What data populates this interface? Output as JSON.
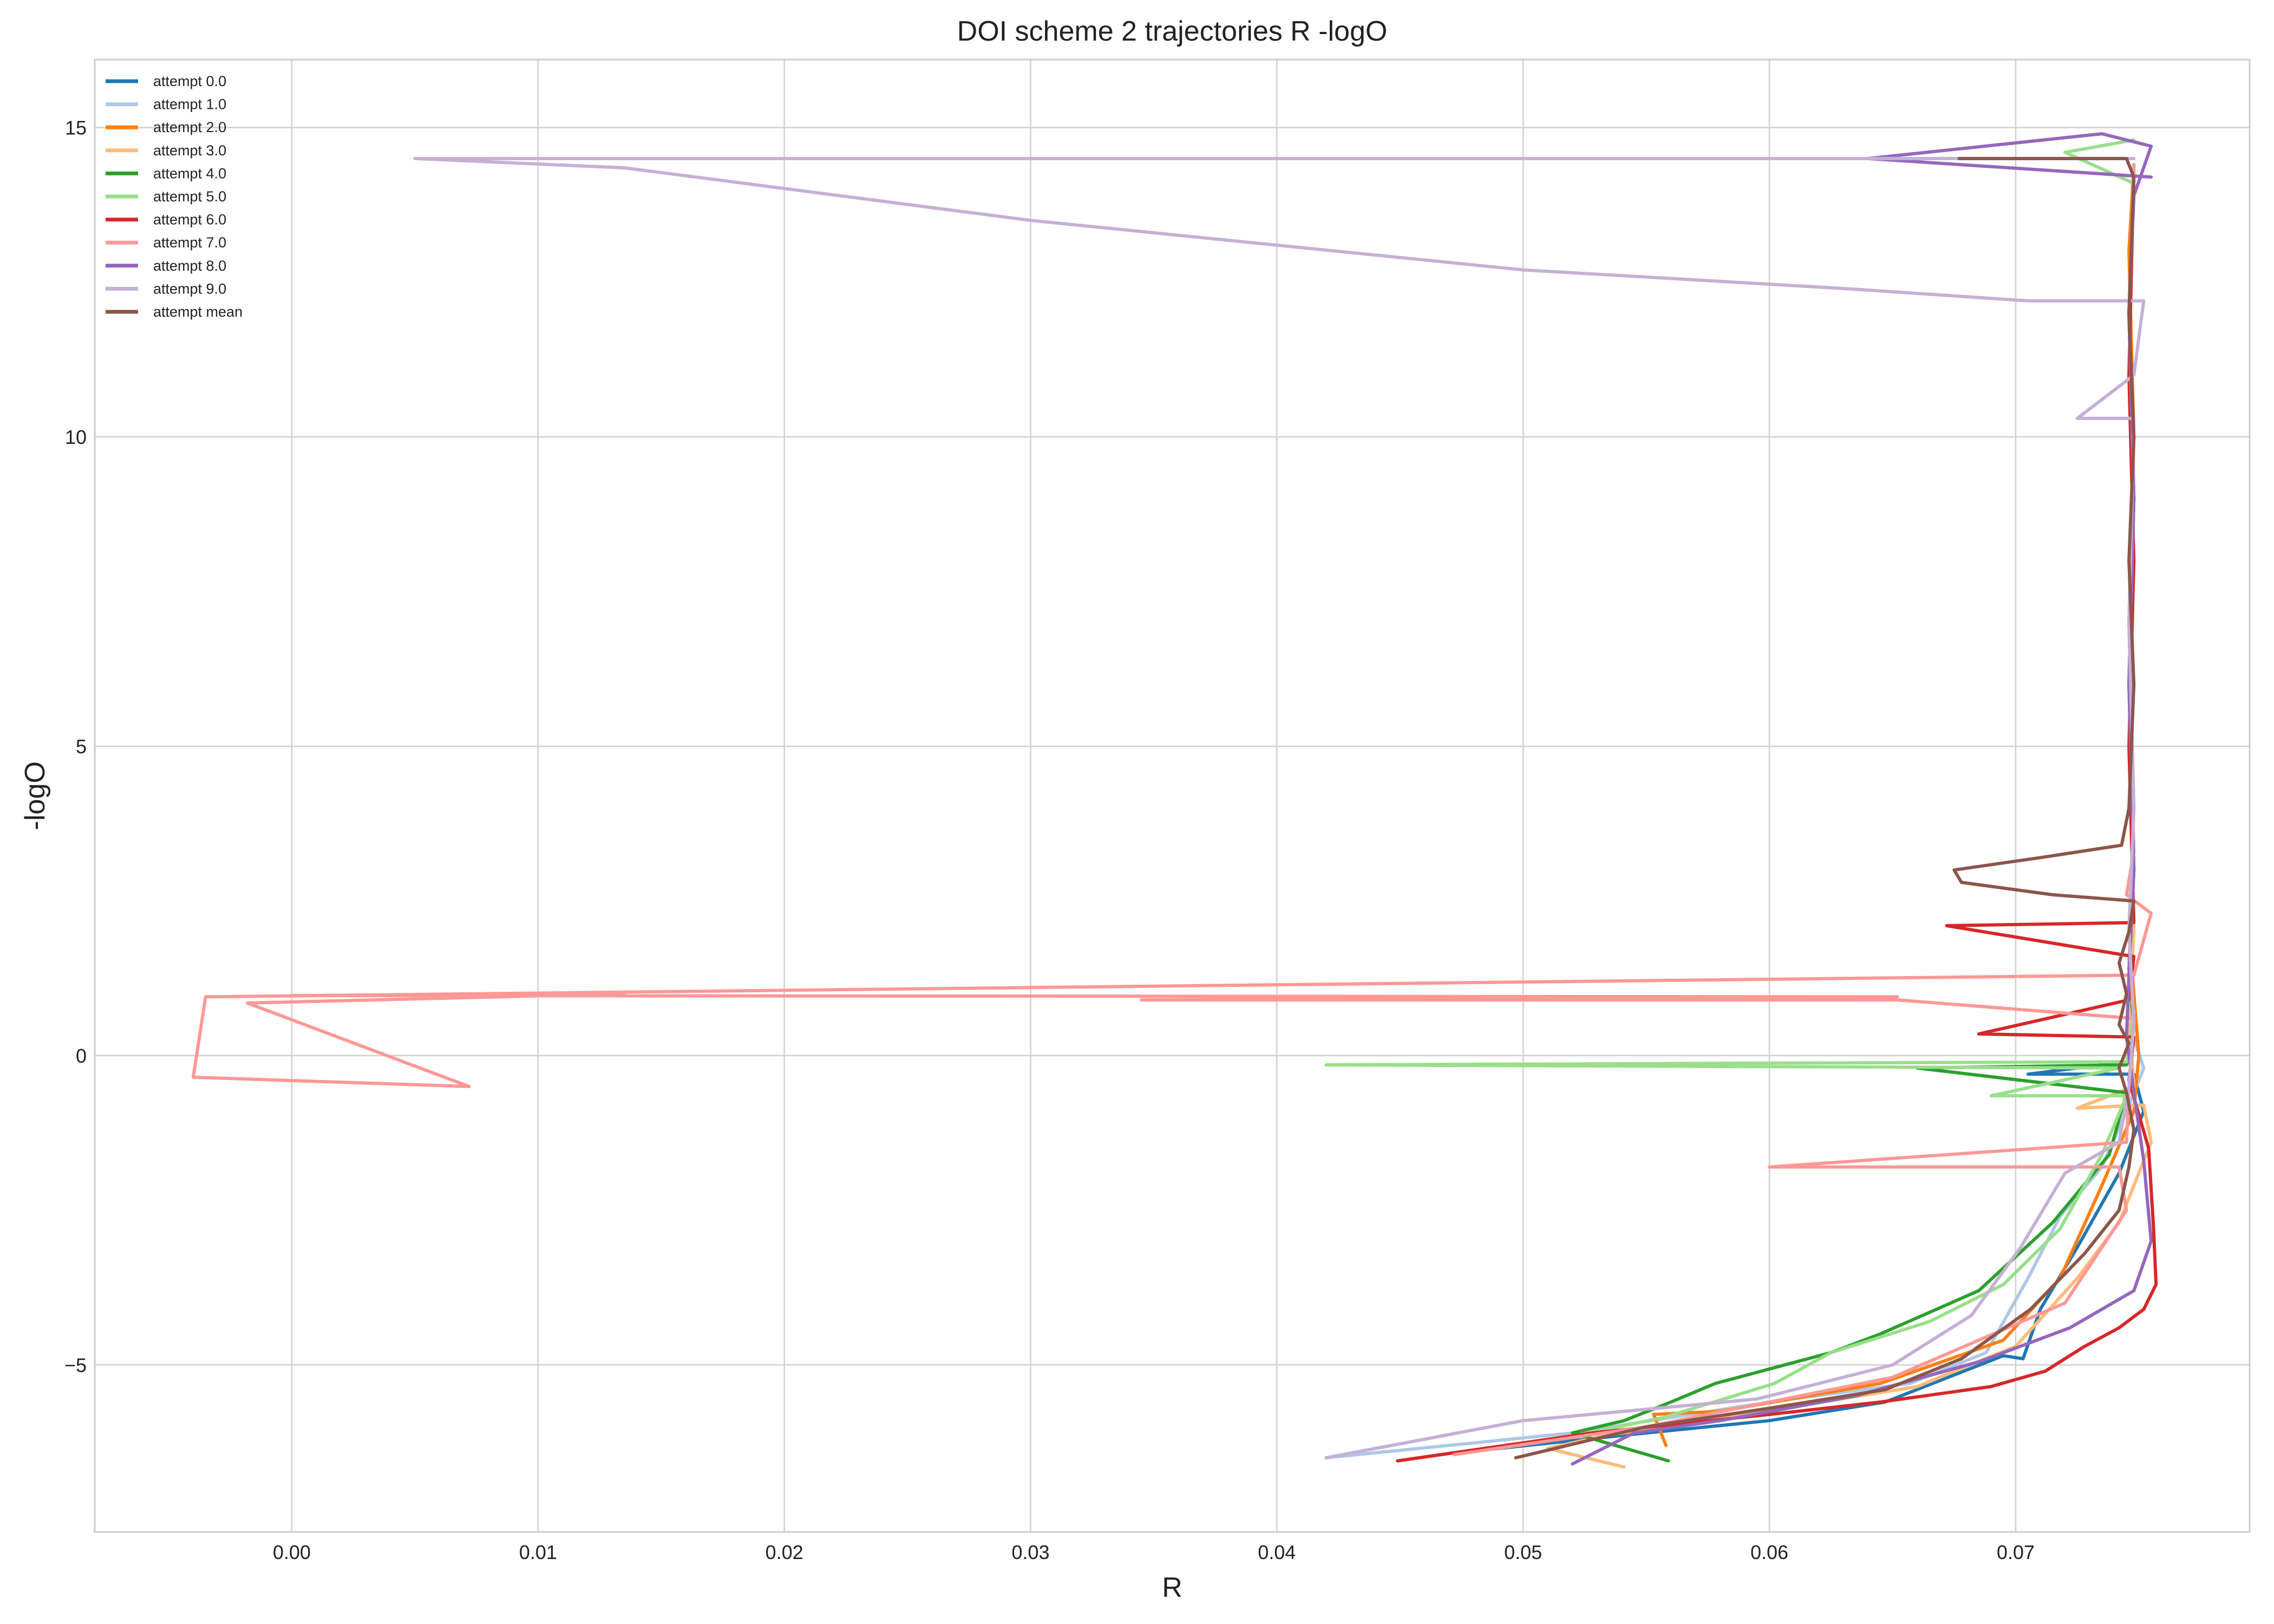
{
  "chart_data": {
    "type": "line",
    "title": "DOI scheme 2 trajectories R -logO",
    "xlabel": "R",
    "ylabel": "-logO",
    "xlim": [
      -0.008,
      0.0795
    ],
    "ylim": [
      -7.7,
      16.1
    ],
    "x_ticks": [
      0.0,
      0.01,
      0.02,
      0.03,
      0.04,
      0.05,
      0.06,
      0.07
    ],
    "x_tick_labels": [
      "0.00",
      "0.01",
      "0.02",
      "0.03",
      "0.04",
      "0.05",
      "0.06",
      "0.07"
    ],
    "y_ticks": [
      -5,
      0,
      5,
      10,
      15
    ],
    "y_tick_labels": [
      "−5",
      "0",
      "5",
      "10",
      "15"
    ],
    "grid": true,
    "legend_position": "top-left",
    "series": [
      {
        "name": "attempt 0.0",
        "color": "#1f77b4",
        "points": [
          [
            0.0478,
            -6.4
          ],
          [
            0.055,
            -6.1
          ],
          [
            0.06,
            -5.9
          ],
          [
            0.0647,
            -5.6
          ],
          [
            0.0695,
            -4.85
          ],
          [
            0.0703,
            -4.9
          ],
          [
            0.071,
            -4.1
          ],
          [
            0.0725,
            -3.1
          ],
          [
            0.0742,
            -1.9
          ],
          [
            0.0752,
            -0.9
          ],
          [
            0.0748,
            -0.3
          ],
          [
            0.0705,
            -0.3
          ],
          [
            0.0745,
            -0.1
          ],
          [
            0.0748,
            0.6
          ],
          [
            0.0746,
            1.4
          ],
          [
            0.0748,
            3
          ],
          [
            0.0746,
            6
          ],
          [
            0.0748,
            9
          ],
          [
            0.0746,
            12
          ],
          [
            0.0748,
            14.3
          ]
        ]
      },
      {
        "name": "attempt 1.0",
        "color": "#aec7e8",
        "points": [
          [
            0.042,
            -6.5
          ],
          [
            0.052,
            -6.1
          ],
          [
            0.06,
            -5.6
          ],
          [
            0.0657,
            -5.3
          ],
          [
            0.0688,
            -4.8
          ],
          [
            0.0705,
            -3.6
          ],
          [
            0.0718,
            -2.6
          ],
          [
            0.0735,
            -1.8
          ],
          [
            0.0745,
            -0.9
          ],
          [
            0.0752,
            -0.2
          ],
          [
            0.0747,
            0.4
          ],
          [
            0.0746,
            1.5
          ],
          [
            0.0748,
            3
          ],
          [
            0.0746,
            6
          ],
          [
            0.0748,
            9
          ],
          [
            0.0746,
            12
          ],
          [
            0.0748,
            14.4
          ]
        ]
      },
      {
        "name": "attempt 2.0",
        "color": "#ff7f0e",
        "points": [
          [
            0.0558,
            -6.3
          ],
          [
            0.0553,
            -5.8
          ],
          [
            0.058,
            -5.75
          ],
          [
            0.0645,
            -5.3
          ],
          [
            0.0695,
            -4.6
          ],
          [
            0.0718,
            -3.6
          ],
          [
            0.0735,
            -2.1
          ],
          [
            0.0748,
            -0.9
          ],
          [
            0.075,
            0
          ],
          [
            0.0748,
            1
          ],
          [
            0.0746,
            2
          ],
          [
            0.0748,
            4
          ],
          [
            0.0746,
            7
          ],
          [
            0.0748,
            10
          ],
          [
            0.0746,
            13
          ],
          [
            0.0748,
            14.4
          ]
        ]
      },
      {
        "name": "attempt 3.0",
        "color": "#ffbb78",
        "points": [
          [
            0.0541,
            -6.65
          ],
          [
            0.051,
            -6.35
          ],
          [
            0.0532,
            -6.15
          ],
          [
            0.0575,
            -5.9
          ],
          [
            0.066,
            -5.35
          ],
          [
            0.07,
            -4.7
          ],
          [
            0.0725,
            -3.6
          ],
          [
            0.0742,
            -2.7
          ],
          [
            0.0755,
            -1.4
          ],
          [
            0.0752,
            -0.8
          ],
          [
            0.0725,
            -0.85
          ],
          [
            0.0748,
            -0.5
          ],
          [
            0.0746,
            0.6
          ],
          [
            0.0748,
            2
          ],
          [
            0.0746,
            5
          ],
          [
            0.0748,
            8
          ],
          [
            0.0746,
            11
          ],
          [
            0.0748,
            14.4
          ]
        ]
      },
      {
        "name": "attempt 4.0",
        "color": "#2ca02c",
        "points": [
          [
            0.0559,
            -6.55
          ],
          [
            0.052,
            -6.1
          ],
          [
            0.0541,
            -5.9
          ],
          [
            0.056,
            -5.6
          ],
          [
            0.0578,
            -5.3
          ],
          [
            0.0625,
            -4.8
          ],
          [
            0.0645,
            -4.5
          ],
          [
            0.0685,
            -3.8
          ],
          [
            0.0715,
            -2.7
          ],
          [
            0.0738,
            -1.6
          ],
          [
            0.0745,
            -0.6
          ],
          [
            0.066,
            -0.2
          ],
          [
            0.0745,
            -0.15
          ],
          [
            0.0748,
            0.5
          ],
          [
            0.0746,
            1.3
          ],
          [
            0.0748,
            3
          ],
          [
            0.0746,
            6
          ],
          [
            0.0748,
            9
          ],
          [
            0.0746,
            12
          ],
          [
            0.0748,
            14.4
          ]
        ]
      },
      {
        "name": "attempt 5.0",
        "color": "#98df8a",
        "points": [
          [
            0.052,
            -6.15
          ],
          [
            0.0557,
            -5.85
          ],
          [
            0.0602,
            -5.3
          ],
          [
            0.0625,
            -4.8
          ],
          [
            0.0665,
            -4.3
          ],
          [
            0.0695,
            -3.7
          ],
          [
            0.0718,
            -2.8
          ],
          [
            0.0735,
            -1.6
          ],
          [
            0.0745,
            -0.65
          ],
          [
            0.069,
            -0.65
          ],
          [
            0.0742,
            -0.2
          ],
          [
            0.042,
            -0.15
          ],
          [
            0.0745,
            -0.1
          ],
          [
            0.0748,
            0.7
          ],
          [
            0.0746,
            1.2
          ],
          [
            0.0748,
            3
          ],
          [
            0.0746,
            6
          ],
          [
            0.0748,
            9
          ],
          [
            0.0746,
            12
          ],
          [
            0.0748,
            14.1
          ],
          [
            0.072,
            14.6
          ],
          [
            0.0748,
            14.8
          ]
        ]
      },
      {
        "name": "attempt 6.0",
        "color": "#d62728",
        "points": [
          [
            0.0449,
            -6.55
          ],
          [
            0.0528,
            -6.1
          ],
          [
            0.06,
            -5.8
          ],
          [
            0.0645,
            -5.6
          ],
          [
            0.069,
            -5.35
          ],
          [
            0.0712,
            -5.1
          ],
          [
            0.0728,
            -4.7
          ],
          [
            0.0742,
            -4.4
          ],
          [
            0.0752,
            -4.1
          ],
          [
            0.0757,
            -3.7
          ],
          [
            0.0756,
            -2.8
          ],
          [
            0.0754,
            -1.5
          ],
          [
            0.0746,
            -0.4
          ],
          [
            0.0748,
            0.3
          ],
          [
            0.0685,
            0.35
          ],
          [
            0.0746,
            0.9
          ],
          [
            0.0748,
            1.6
          ],
          [
            0.0672,
            2.1
          ],
          [
            0.0748,
            2.15
          ],
          [
            0.0746,
            5
          ],
          [
            0.0748,
            8
          ],
          [
            0.0746,
            11
          ],
          [
            0.0748,
            14.4
          ]
        ]
      },
      {
        "name": "attempt 7.0",
        "color": "#ff9896",
        "points": [
          [
            0.0472,
            -6.45
          ],
          [
            0.055,
            -6.0
          ],
          [
            0.065,
            -5.2
          ],
          [
            0.072,
            -4.0
          ],
          [
            0.0745,
            -2.5
          ],
          [
            0.0742,
            -1.8
          ],
          [
            0.06,
            -1.8
          ],
          [
            0.0745,
            -1.4
          ],
          [
            0.0746,
            -0.5
          ],
          [
            0.0748,
            0.6
          ],
          [
            0.0652,
            0.9
          ],
          [
            0.0345,
            0.9
          ],
          [
            0.0652,
            0.95
          ],
          [
            0.0,
            0.97
          ],
          [
            0.0135,
            1.0
          ],
          [
            -0.0018,
            0.85
          ],
          [
            0.0072,
            -0.5
          ],
          [
            -0.004,
            -0.35
          ],
          [
            -0.0035,
            0.95
          ],
          [
            0.0748,
            1.3
          ],
          [
            0.0755,
            2.3
          ],
          [
            0.0745,
            2.6
          ],
          [
            0.0748,
            3.3
          ],
          [
            0.0746,
            6
          ],
          [
            0.0748,
            9
          ],
          [
            0.0746,
            12
          ],
          [
            0.0748,
            14.4
          ]
        ]
      },
      {
        "name": "attempt 8.0",
        "color": "#9467bd",
        "points": [
          [
            0.052,
            -6.6
          ],
          [
            0.0545,
            -6.1
          ],
          [
            0.058,
            -5.9
          ],
          [
            0.0635,
            -5.5
          ],
          [
            0.0685,
            -4.95
          ],
          [
            0.0722,
            -4.4
          ],
          [
            0.0748,
            -3.8
          ],
          [
            0.0755,
            -3.0
          ],
          [
            0.0752,
            -1.7
          ],
          [
            0.0748,
            -0.6
          ],
          [
            0.0745,
            0.3
          ],
          [
            0.0746,
            1.3
          ],
          [
            0.0748,
            3
          ],
          [
            0.0746,
            6
          ],
          [
            0.0748,
            9
          ],
          [
            0.0746,
            12
          ],
          [
            0.0748,
            13.9
          ],
          [
            0.0755,
            14.7
          ],
          [
            0.0735,
            14.9
          ],
          [
            0.064,
            14.5
          ],
          [
            0.0755,
            14.2
          ]
        ]
      },
      {
        "name": "attempt 9.0",
        "color": "#c5b0d5",
        "points": [
          [
            0.042,
            -6.5
          ],
          [
            0.05,
            -5.9
          ],
          [
            0.0595,
            -5.55
          ],
          [
            0.065,
            -5.0
          ],
          [
            0.0682,
            -4.2
          ],
          [
            0.0702,
            -3.1
          ],
          [
            0.072,
            -1.9
          ],
          [
            0.0742,
            -1.4
          ],
          [
            0.0746,
            -0.5
          ],
          [
            0.0748,
            0.5
          ],
          [
            0.0746,
            2
          ],
          [
            0.0748,
            4
          ],
          [
            0.0746,
            7
          ],
          [
            0.0748,
            10.3
          ],
          [
            0.0725,
            10.3
          ],
          [
            0.0748,
            11
          ],
          [
            0.0752,
            12.2
          ],
          [
            0.0705,
            12.2
          ],
          [
            0.063,
            12.4
          ],
          [
            0.05,
            12.7
          ],
          [
            0.04,
            13.1
          ],
          [
            0.03,
            13.5
          ],
          [
            0.0135,
            14.35
          ],
          [
            0.005,
            14.5
          ],
          [
            0.0748,
            14.5
          ]
        ]
      },
      {
        "name": "attempt mean",
        "color": "#8c564b",
        "points": [
          [
            0.0497,
            -6.5
          ],
          [
            0.055,
            -6.0
          ],
          [
            0.06,
            -5.7
          ],
          [
            0.0647,
            -5.4
          ],
          [
            0.0678,
            -4.9
          ],
          [
            0.0706,
            -4.1
          ],
          [
            0.0728,
            -3.2
          ],
          [
            0.0742,
            -2.5
          ],
          [
            0.0746,
            -1.8
          ],
          [
            0.0748,
            -1.2
          ],
          [
            0.0745,
            -0.6
          ],
          [
            0.0742,
            -0.2
          ],
          [
            0.0746,
            0.2
          ],
          [
            0.0742,
            0.5
          ],
          [
            0.0745,
            1.0
          ],
          [
            0.0742,
            1.5
          ],
          [
            0.0746,
            2.0
          ],
          [
            0.0748,
            2.5
          ],
          [
            0.0715,
            2.6
          ],
          [
            0.0678,
            2.8
          ],
          [
            0.0675,
            3.0
          ],
          [
            0.071,
            3.2
          ],
          [
            0.0743,
            3.4
          ],
          [
            0.0746,
            4
          ],
          [
            0.0748,
            6
          ],
          [
            0.0746,
            8
          ],
          [
            0.0748,
            10
          ],
          [
            0.0746,
            12
          ],
          [
            0.0748,
            14.2
          ],
          [
            0.0745,
            14.5
          ],
          [
            0.0677,
            14.5
          ]
        ]
      }
    ]
  }
}
